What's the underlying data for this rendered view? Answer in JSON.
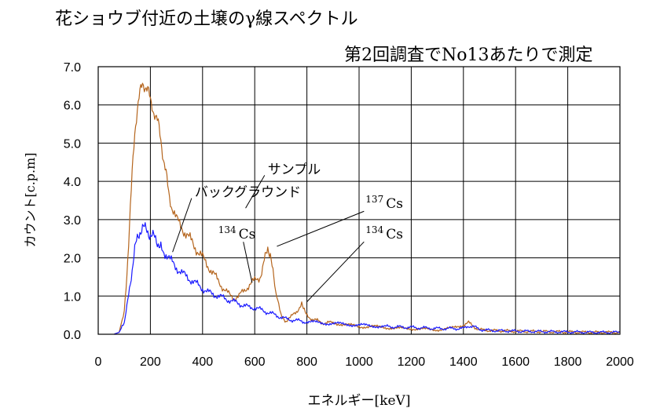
{
  "title": "花ショウブ付近の土壌のγ線スペクトル",
  "subtitle": "第2回調査でNo13あたりで測定",
  "chart_data": {
    "type": "line",
    "xlabel": "エネルギー[keV]",
    "ylabel": "カウント[c.p.m]",
    "xlim": [
      0,
      2000
    ],
    "ylim": [
      0,
      7
    ],
    "x_ticks": [
      "0",
      "200",
      "400",
      "600",
      "800",
      "1000",
      "1200",
      "1400",
      "1600",
      "1800",
      "2000"
    ],
    "y_ticks": [
      "0.0",
      "1.0",
      "2.0",
      "3.0",
      "4.0",
      "5.0",
      "6.0",
      "7.0"
    ],
    "grid": true,
    "series": [
      {
        "name": "サンプル",
        "color": "#b5651d",
        "x": [
          60,
          80,
          100,
          110,
          120,
          130,
          140,
          150,
          160,
          170,
          180,
          190,
          200,
          210,
          220,
          230,
          240,
          250,
          260,
          270,
          280,
          300,
          320,
          340,
          360,
          380,
          400,
          420,
          440,
          460,
          480,
          500,
          520,
          540,
          560,
          580,
          600,
          620,
          630,
          640,
          650,
          660,
          670,
          680,
          700,
          720,
          740,
          760,
          780,
          790,
          800,
          820,
          840,
          860,
          900,
          950,
          1000,
          1050,
          1100,
          1150,
          1200,
          1250,
          1300,
          1350,
          1400,
          1420,
          1440,
          1460,
          1500,
          1600,
          1700,
          1800,
          1900,
          2000
        ],
        "y": [
          0.0,
          0.05,
          0.6,
          1.6,
          2.8,
          4.2,
          5.3,
          5.9,
          6.3,
          6.55,
          6.5,
          6.4,
          6.1,
          5.9,
          5.7,
          5.5,
          5.1,
          4.6,
          4.2,
          3.7,
          3.4,
          3.0,
          2.8,
          2.6,
          2.4,
          2.2,
          2.0,
          1.8,
          1.6,
          1.4,
          1.2,
          1.05,
          0.95,
          1.0,
          1.15,
          1.3,
          1.4,
          1.5,
          1.7,
          2.0,
          2.3,
          2.1,
          1.6,
          1.1,
          0.5,
          0.35,
          0.45,
          0.6,
          0.8,
          0.7,
          0.5,
          0.4,
          0.35,
          0.3,
          0.3,
          0.25,
          0.2,
          0.2,
          0.18,
          0.15,
          0.15,
          0.13,
          0.12,
          0.15,
          0.25,
          0.3,
          0.2,
          0.12,
          0.1,
          0.08,
          0.07,
          0.06,
          0.05,
          0.05
        ]
      },
      {
        "name": "バックグラウンド",
        "color": "#1a1aff",
        "x": [
          60,
          80,
          100,
          110,
          120,
          130,
          140,
          150,
          160,
          170,
          180,
          190,
          200,
          210,
          220,
          230,
          240,
          260,
          280,
          300,
          320,
          340,
          360,
          380,
          400,
          420,
          440,
          460,
          480,
          500,
          520,
          540,
          560,
          580,
          600,
          620,
          640,
          660,
          680,
          700,
          720,
          740,
          760,
          780,
          800,
          850,
          900,
          950,
          1000,
          1050,
          1100,
          1200,
          1300,
          1400,
          1420,
          1440,
          1460,
          1500,
          1600,
          1700,
          1800,
          1900,
          2000
        ],
        "y": [
          0.0,
          0.05,
          0.3,
          0.7,
          1.2,
          1.7,
          2.2,
          2.5,
          2.7,
          2.8,
          2.75,
          2.7,
          2.6,
          2.55,
          2.5,
          2.4,
          2.3,
          2.1,
          1.9,
          1.75,
          1.6,
          1.5,
          1.4,
          1.3,
          1.2,
          1.1,
          1.05,
          1.0,
          0.95,
          0.9,
          0.85,
          0.8,
          0.75,
          0.7,
          0.7,
          0.65,
          0.6,
          0.55,
          0.5,
          0.45,
          0.4,
          0.38,
          0.36,
          0.34,
          0.32,
          0.3,
          0.28,
          0.26,
          0.24,
          0.22,
          0.2,
          0.18,
          0.15,
          0.15,
          0.22,
          0.2,
          0.13,
          0.1,
          0.08,
          0.07,
          0.06,
          0.05,
          0.05
        ]
      }
    ],
    "annotations": [
      {
        "id": "sample",
        "text": "サンプル",
        "at": [
          650,
          4.2
        ],
        "point": [
          565,
          3.3
        ]
      },
      {
        "id": "bg",
        "text": "バックグラウンド",
        "at": [
          370,
          3.6
        ],
        "point": [
          285,
          2.15
        ]
      },
      {
        "id": "cs137",
        "sup": "137",
        "text": "Cs",
        "at": [
          1025,
          3.3
        ],
        "point": [
          685,
          2.3
        ]
      },
      {
        "id": "cs134a",
        "sup": "134",
        "text": "Cs",
        "at": [
          460,
          2.5
        ],
        "point": [
          590,
          1.35
        ]
      },
      {
        "id": "cs134b",
        "sup": "134",
        "text": "Cs",
        "at": [
          1025,
          2.5
        ],
        "point": [
          800,
          0.85
        ]
      }
    ]
  }
}
